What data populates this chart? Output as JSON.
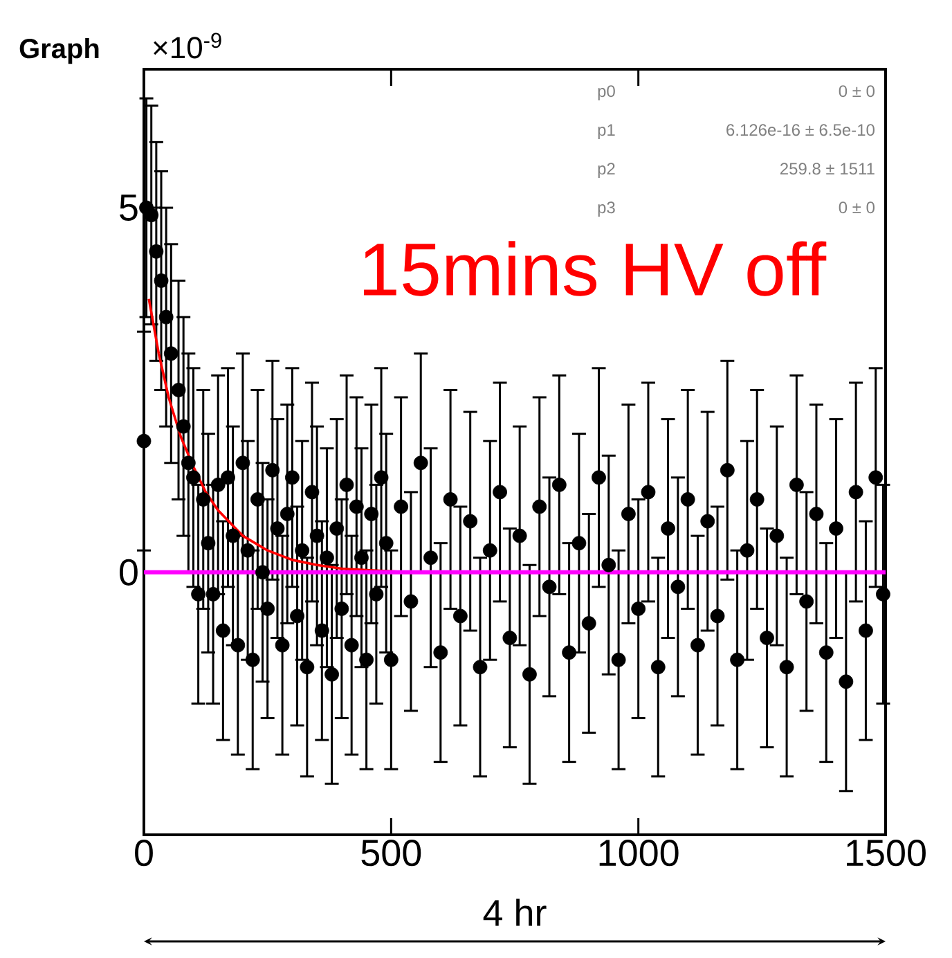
{
  "chart_data": {
    "type": "scatter",
    "title": "Graph",
    "annotations": [
      "×10$^{-9}$",
      "p0",
      "0 ± 0",
      "p1",
      "6.126e-16 ± 6.5e-10",
      "p2",
      "259.8 ± 1511",
      "p3",
      "0 ± 0",
      "15mins HV off",
      "4 hr"
    ],
    "xlim": [
      0,
      1500
    ],
    "ylim": [
      -3.6,
      6.9
    ],
    "xticks": [
      0,
      500,
      1000,
      1500
    ],
    "yticks": [
      0,
      5
    ],
    "ref_lines": [
      {
        "axis": "y",
        "value": 0,
        "color": "#ff00ff"
      }
    ],
    "series": [
      {
        "color": "#000000",
        "marker": "circle",
        "x": [
          0,
          5,
          15,
          25,
          35,
          45,
          55,
          70,
          80,
          90,
          100,
          110,
          120,
          130,
          140,
          150,
          160,
          170,
          180,
          190,
          200,
          210,
          220,
          230,
          240,
          250,
          260,
          270,
          280,
          290,
          300,
          310,
          320,
          330,
          340,
          350,
          360,
          370,
          380,
          390,
          400,
          410,
          420,
          430,
          440,
          450,
          460,
          470,
          480,
          490,
          500,
          520,
          540,
          560,
          580,
          600,
          620,
          640,
          660,
          680,
          700,
          720,
          740,
          760,
          780,
          800,
          820,
          840,
          860,
          880,
          900,
          920,
          940,
          960,
          980,
          1000,
          1020,
          1040,
          1060,
          1080,
          1100,
          1120,
          1140,
          1160,
          1180,
          1200,
          1220,
          1240,
          1260,
          1280,
          1300,
          1320,
          1340,
          1360,
          1380,
          1400,
          1420,
          1440,
          1460,
          1480,
          1495
        ],
        "values": [
          1.8,
          5.0,
          4.9,
          4.4,
          4.0,
          3.5,
          3.0,
          2.5,
          2.0,
          1.5,
          1.3,
          -0.3,
          1.0,
          0.4,
          -0.3,
          1.2,
          -0.8,
          1.3,
          0.5,
          -1.0,
          1.5,
          0.3,
          -1.2,
          1.0,
          0.0,
          -0.5,
          1.4,
          0.6,
          -1.0,
          0.8,
          1.3,
          -0.6,
          0.3,
          -1.3,
          1.1,
          0.5,
          -0.8,
          0.2,
          -1.4,
          0.6,
          -0.5,
          1.2,
          -1.0,
          0.9,
          0.2,
          -1.2,
          0.8,
          -0.3,
          1.3,
          0.4,
          -1.2,
          0.9,
          -0.4,
          1.5,
          0.2,
          -1.1,
          1.0,
          -0.6,
          0.7,
          -1.3,
          0.3,
          1.1,
          -0.9,
          0.5,
          -1.4,
          0.9,
          -0.2,
          1.2,
          -1.1,
          0.4,
          -0.7,
          1.3,
          0.1,
          -1.2,
          0.8,
          -0.5,
          1.1,
          -1.3,
          0.6,
          -0.2,
          1.0,
          -1.0,
          0.7,
          -0.6,
          1.4,
          -1.2,
          0.3,
          1.0,
          -0.9,
          0.5,
          -1.3,
          1.2,
          -0.4,
          0.8,
          -1.1,
          0.6,
          -1.5,
          1.1,
          -0.8,
          1.3,
          -0.3
        ],
        "errors": [
          1.5,
          1.5,
          1.5,
          1.5,
          1.5,
          1.5,
          1.5,
          1.5,
          1.5,
          1.5,
          1.5,
          1.5,
          1.5,
          1.5,
          1.5,
          1.5,
          1.5,
          1.5,
          1.5,
          1.5,
          1.5,
          1.5,
          1.5,
          1.5,
          1.5,
          1.5,
          1.5,
          1.5,
          1.5,
          1.5,
          1.5,
          1.5,
          1.5,
          1.5,
          1.5,
          1.5,
          1.5,
          1.5,
          1.5,
          1.5,
          1.5,
          1.5,
          1.5,
          1.5,
          1.5,
          1.5,
          1.5,
          1.5,
          1.5,
          1.5,
          1.5,
          1.5,
          1.5,
          1.5,
          1.5,
          1.5,
          1.5,
          1.5,
          1.5,
          1.5,
          1.5,
          1.5,
          1.5,
          1.5,
          1.5,
          1.5,
          1.5,
          1.5,
          1.5,
          1.5,
          1.5,
          1.5,
          1.5,
          1.5,
          1.5,
          1.5,
          1.5,
          1.5,
          1.5,
          1.5,
          1.5,
          1.5,
          1.5,
          1.5,
          1.5,
          1.5,
          1.5,
          1.5,
          1.5,
          1.5,
          1.5,
          1.5,
          1.5,
          1.5,
          1.5,
          1.5,
          1.5,
          1.5,
          1.5,
          1.5,
          1.5
        ]
      },
      {
        "type": "line",
        "color": "#ff0000",
        "marker": "none",
        "x": [
          10,
          30,
          50,
          75,
          100,
          125,
          150,
          200,
          250,
          300,
          350,
          400,
          450,
          540
        ],
        "values": [
          3.75,
          3.0,
          2.4,
          1.85,
          1.45,
          1.1,
          0.85,
          0.5,
          0.3,
          0.17,
          0.1,
          0.05,
          0.03,
          0.0
        ]
      }
    ]
  }
}
